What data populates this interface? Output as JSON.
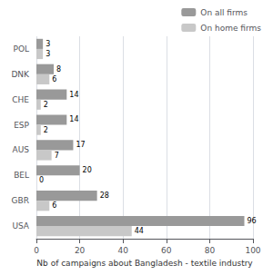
{
  "chart_data": {
    "type": "bar",
    "orientation": "horizontal",
    "categories": [
      "USA",
      "GBR",
      "BEL",
      "AUS",
      "ESP",
      "CHE",
      "DNK",
      "POL"
    ],
    "series": [
      {
        "name": "On all firms",
        "color": "#999999",
        "values": [
          96,
          28,
          20,
          17,
          14,
          14,
          8,
          3
        ]
      },
      {
        "name": "On home firms",
        "color": "#c8c8c8",
        "values": [
          44,
          6,
          0,
          7,
          2,
          2,
          6,
          3
        ]
      }
    ],
    "xlabel": "Nb of campaigns about Bangladesh - textile industry",
    "xlim": [
      0,
      100
    ],
    "xticks": [
      0,
      20,
      40,
      60,
      80,
      100
    ],
    "grid": true,
    "legend": "upper right",
    "data_labels": true
  }
}
